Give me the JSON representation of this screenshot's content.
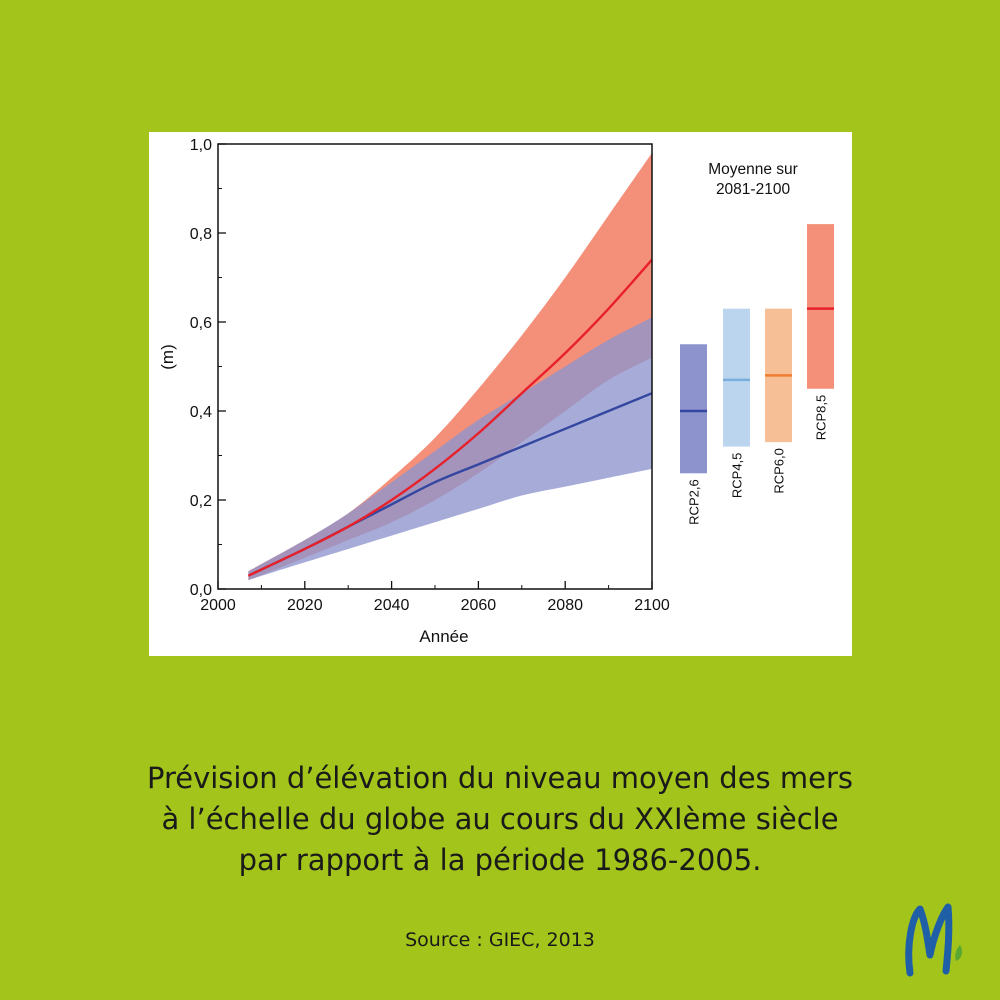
{
  "caption": {
    "line1": "Prévision d’élévation du niveau moyen des mers",
    "line2": "à l’échelle du globe au cours du XXIème siècle",
    "line3": "par rapport à la période 1986-2005."
  },
  "source": "Source : GIEC, 2013",
  "logo": {
    "icon": "m-letter-logo-icon",
    "color": "#1f5fa8",
    "accent": "#5aa832"
  },
  "chart_data": {
    "type": "area",
    "title": "",
    "xlabel": "Année",
    "ylabel": "(m)",
    "xlim": [
      2000,
      2100
    ],
    "ylim": [
      0.0,
      1.0
    ],
    "x_ticks": [
      "2000",
      "2020",
      "2040",
      "2060",
      "2080",
      "2100"
    ],
    "y_ticks": [
      "0,0",
      "0,2",
      "0,4",
      "0,6",
      "0,8",
      "1,0"
    ],
    "grid": false,
    "series": [
      {
        "name": "RCP8,5",
        "color": "#e8202a",
        "band_color": "#f4907a",
        "x": [
          2007,
          2020,
          2030,
          2040,
          2050,
          2060,
          2070,
          2080,
          2090,
          2100
        ],
        "mean": [
          0.03,
          0.09,
          0.14,
          0.2,
          0.27,
          0.35,
          0.44,
          0.53,
          0.63,
          0.74
        ],
        "upper": [
          0.04,
          0.11,
          0.17,
          0.25,
          0.34,
          0.45,
          0.57,
          0.7,
          0.84,
          0.98
        ],
        "lower": [
          0.02,
          0.07,
          0.11,
          0.15,
          0.2,
          0.26,
          0.33,
          0.4,
          0.47,
          0.52
        ]
      },
      {
        "name": "RCP2,6",
        "color": "#3346a0",
        "band_color": "#8d94cd",
        "x": [
          2007,
          2020,
          2030,
          2040,
          2050,
          2060,
          2070,
          2080,
          2090,
          2100
        ],
        "mean": [
          0.03,
          0.09,
          0.14,
          0.19,
          0.24,
          0.28,
          0.32,
          0.36,
          0.4,
          0.44
        ],
        "upper": [
          0.04,
          0.11,
          0.17,
          0.24,
          0.31,
          0.38,
          0.44,
          0.5,
          0.56,
          0.61
        ],
        "lower": [
          0.02,
          0.06,
          0.09,
          0.12,
          0.15,
          0.18,
          0.21,
          0.23,
          0.25,
          0.27
        ]
      }
    ],
    "side_panel": {
      "title_line1": "Moyenne sur",
      "title_line2": "2081-2100",
      "bars": [
        {
          "name": "RCP2,6",
          "low": 0.26,
          "mean": 0.4,
          "high": 0.55,
          "fill": "#8d94cd",
          "line": "#3346a0"
        },
        {
          "name": "RCP4,5",
          "low": 0.32,
          "mean": 0.47,
          "high": 0.63,
          "fill": "#bcd5ef",
          "line": "#7aaedc"
        },
        {
          "name": "RCP6,0",
          "low": 0.33,
          "mean": 0.48,
          "high": 0.63,
          "fill": "#f7bf96",
          "line": "#f07d32"
        },
        {
          "name": "RCP8,5",
          "low": 0.45,
          "mean": 0.63,
          "high": 0.82,
          "fill": "#f4907a",
          "line": "#e8202a"
        }
      ]
    }
  }
}
